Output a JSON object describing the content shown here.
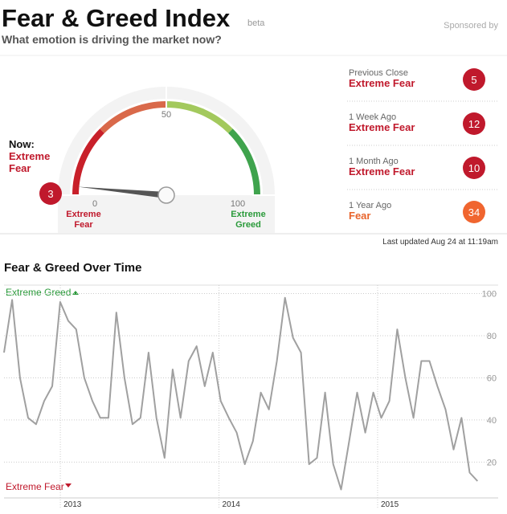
{
  "header": {
    "title": "Fear & Greed Index",
    "badge": "beta",
    "subtitle": "What emotion is driving the market now?",
    "sponsor": "Sponsored by"
  },
  "gauge": {
    "now_label": "Now:",
    "now_state": "Extreme Fear",
    "value": 3,
    "range": [
      0,
      100
    ],
    "ticks": [
      0,
      50,
      100
    ],
    "low_label": "Extreme Fear",
    "high_label": "Extreme Greed"
  },
  "history": [
    {
      "label": "Previous Close",
      "state": "Extreme Fear",
      "value": 5,
      "color": "#c0192c"
    },
    {
      "label": "1 Week Ago",
      "state": "Extreme Fear",
      "value": 12,
      "color": "#c0192c"
    },
    {
      "label": "1 Month Ago",
      "state": "Extreme Fear",
      "value": 10,
      "color": "#c0192c"
    },
    {
      "label": "1 Year Ago",
      "state": "Fear",
      "value": 34,
      "color": "#f0652f"
    }
  ],
  "updated": "Last updated Aug 24 at 11:19am",
  "chart_data": {
    "type": "line",
    "title": "Fear & Greed Over Time",
    "top_label": "Extreme Greed",
    "bottom_label": "Extreme Fear",
    "color": "#a0a0a0",
    "x": [
      2012.645,
      2012.696,
      2012.746,
      2012.797,
      2012.847,
      2012.898,
      2012.949,
      2012.999,
      2013.05,
      2013.1,
      2013.151,
      2013.202,
      2013.252,
      2013.303,
      2013.353,
      2013.404,
      2013.455,
      2013.505,
      2013.556,
      2013.606,
      2013.657,
      2013.708,
      2013.758,
      2013.809,
      2013.859,
      2013.91,
      2013.961,
      2014.011,
      2014.062,
      2014.112,
      2014.163,
      2014.214,
      2014.264,
      2014.315,
      2014.365,
      2014.416,
      2014.467,
      2014.517,
      2014.568,
      2014.618,
      2014.669,
      2014.72,
      2014.77,
      2014.821,
      2014.871,
      2014.922,
      2014.973,
      2015.023,
      2015.074,
      2015.124,
      2015.175,
      2015.226,
      2015.276,
      2015.327,
      2015.377,
      2015.428,
      2015.479,
      2015.529,
      2015.58,
      2015.63
    ],
    "values": [
      72,
      97,
      60,
      41,
      38,
      49,
      56,
      96,
      87,
      83,
      60,
      49,
      41,
      41,
      91,
      60,
      38,
      41,
      72,
      41,
      22,
      64,
      41,
      68,
      75,
      56,
      72,
      49,
      41,
      34,
      19,
      30,
      53,
      45,
      68,
      98,
      79,
      72,
      19,
      22,
      53,
      19,
      7,
      30,
      53,
      34,
      53,
      41,
      49,
      83,
      60,
      41,
      68,
      68,
      56,
      45,
      26,
      41,
      15,
      11
    ],
    "xlim": [
      2012.645,
      2015.76
    ],
    "ylim": [
      3,
      104
    ],
    "xticks": [
      2013,
      2014,
      2015
    ],
    "yticks": [
      20,
      40,
      60,
      80,
      100
    ],
    "grid": true
  }
}
